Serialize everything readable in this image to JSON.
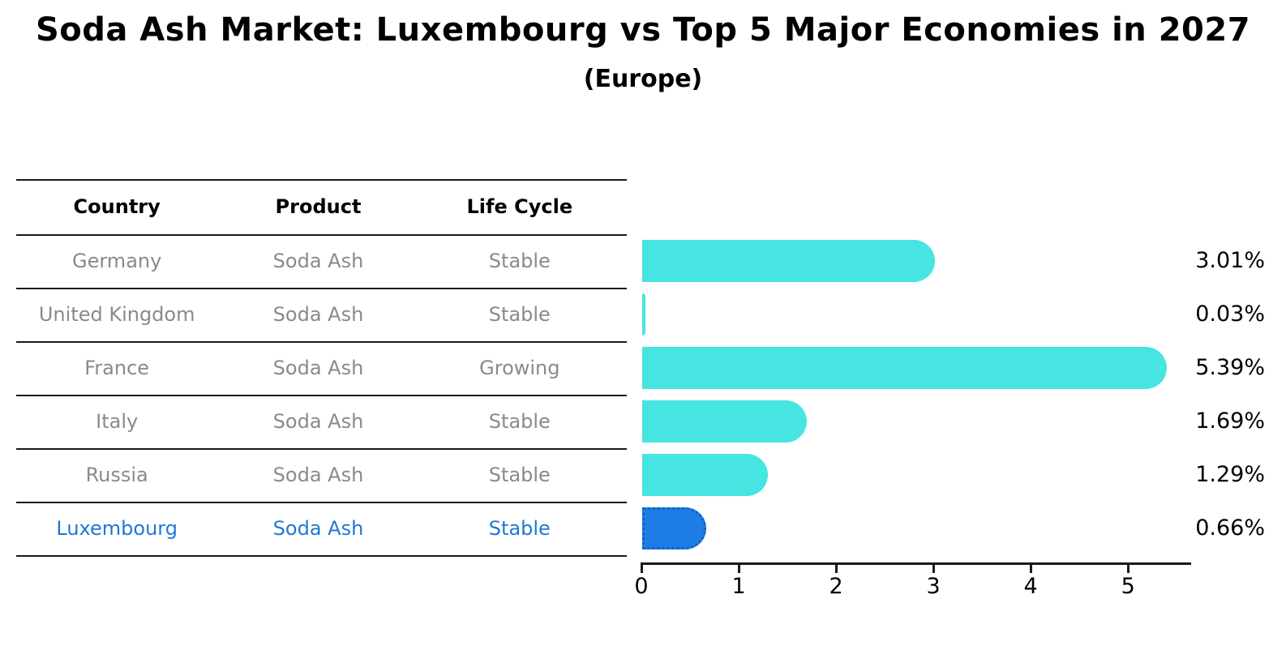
{
  "title": "Soda Ash Market: Luxembourg vs Top 5 Major Economies in 2027",
  "subtitle": "(Europe)",
  "table": {
    "headers": {
      "country": "Country",
      "product": "Product",
      "life_cycle": "Life Cycle"
    },
    "rows": [
      {
        "country": "Germany",
        "product": "Soda Ash",
        "life_cycle": "Stable",
        "highlighted": false
      },
      {
        "country": "United Kingdom",
        "product": "Soda Ash",
        "life_cycle": "Stable",
        "highlighted": false
      },
      {
        "country": "France",
        "product": "Soda Ash",
        "life_cycle": "Growing",
        "highlighted": false
      },
      {
        "country": "Italy",
        "product": "Soda Ash",
        "life_cycle": "Stable",
        "highlighted": false
      },
      {
        "country": "Russia",
        "product": "Soda Ash",
        "life_cycle": "Stable",
        "highlighted": false
      },
      {
        "country": "Luxembourg",
        "product": "Soda Ash",
        "life_cycle": "Stable",
        "highlighted": true
      }
    ]
  },
  "chart_data": {
    "type": "bar",
    "orientation": "horizontal",
    "title": "Soda Ash Market: Luxembourg vs Top 5 Major Economies in 2027 (Europe)",
    "categories": [
      "Germany",
      "United Kingdom",
      "France",
      "Italy",
      "Russia",
      "Luxembourg"
    ],
    "values": [
      3.01,
      0.03,
      5.39,
      1.69,
      1.29,
      0.66
    ],
    "value_labels": [
      "3.01%",
      "0.03%",
      "5.39%",
      "1.69%",
      "1.29%",
      "0.66%"
    ],
    "highlight_index": 5,
    "xlim": [
      0,
      5.64
    ],
    "x_ticks": [
      0,
      1,
      2,
      3,
      4,
      5
    ],
    "x_tick_labels": [
      "0",
      "1",
      "2",
      "3",
      "4",
      "5"
    ],
    "grid": false,
    "legend": false,
    "bar_color": "#46e5e2",
    "highlight_bar_color": "#1e7de4",
    "highlight_text_color": "#1f78d6"
  }
}
